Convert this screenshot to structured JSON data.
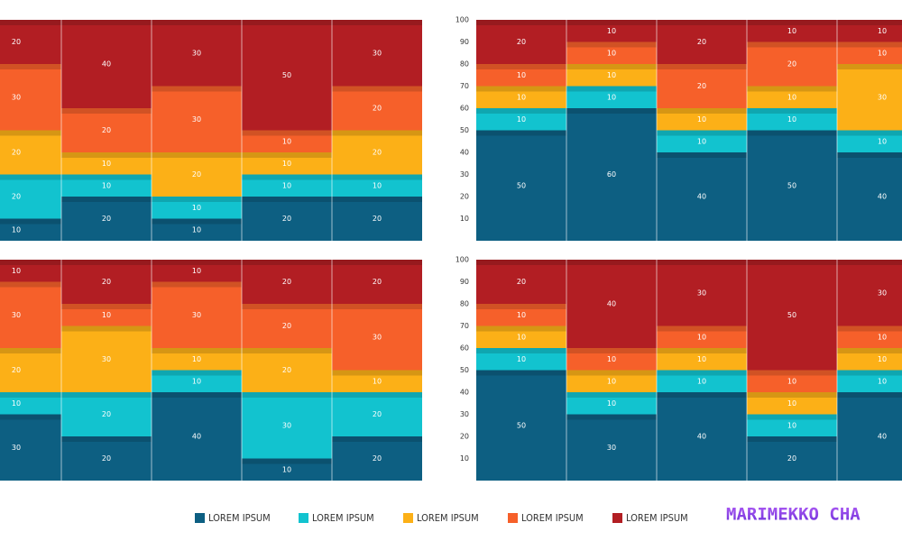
{
  "legend": [
    {
      "label": "LOREM IPSUM",
      "color": "#0d5f82"
    },
    {
      "label": "LOREM IPSUM",
      "color": "#12c3cf"
    },
    {
      "label": "LOREM IPSUM",
      "color": "#fcb017"
    },
    {
      "label": "LOREM IPSUM",
      "color": "#f6602a"
    },
    {
      "label": "LOREM IPSUM",
      "color": "#b21e23"
    }
  ],
  "brand": "MARIMEKKO CHA",
  "chart_data": [
    {
      "type": "bar",
      "stacked": true,
      "ylim": [
        0,
        100
      ],
      "series": [
        {
          "values": [
            10,
            20,
            10,
            20,
            20
          ]
        },
        {
          "values": [
            20,
            10,
            10,
            10,
            10
          ]
        },
        {
          "values": [
            20,
            10,
            20,
            10,
            20
          ]
        },
        {
          "values": [
            30,
            20,
            30,
            10,
            20
          ]
        },
        {
          "values": [
            20,
            40,
            30,
            50,
            30
          ]
        }
      ]
    },
    {
      "type": "bar",
      "stacked": true,
      "ylim": [
        0,
        100
      ],
      "yticks": [
        10,
        20,
        30,
        40,
        50,
        60,
        70,
        80,
        90,
        100
      ],
      "series": [
        {
          "values": [
            50,
            60,
            40,
            50,
            40
          ]
        },
        {
          "values": [
            10,
            10,
            10,
            10,
            10
          ]
        },
        {
          "values": [
            10,
            10,
            10,
            10,
            30
          ]
        },
        {
          "values": [
            10,
            10,
            20,
            20,
            10
          ]
        },
        {
          "values": [
            20,
            10,
            20,
            10,
            10
          ]
        }
      ]
    },
    {
      "type": "bar",
      "stacked": true,
      "ylim": [
        0,
        100
      ],
      "series": [
        {
          "values": [
            30,
            20,
            40,
            10,
            20
          ]
        },
        {
          "values": [
            10,
            20,
            10,
            30,
            20
          ]
        },
        {
          "values": [
            20,
            30,
            10,
            20,
            10
          ]
        },
        {
          "values": [
            30,
            10,
            30,
            20,
            30
          ]
        },
        {
          "values": [
            10,
            20,
            10,
            20,
            20
          ]
        }
      ]
    },
    {
      "type": "bar",
      "stacked": true,
      "ylim": [
        0,
        100
      ],
      "yticks": [
        10,
        20,
        30,
        40,
        50,
        60,
        70,
        80,
        90,
        100
      ],
      "series": [
        {
          "values": [
            50,
            30,
            40,
            20,
            40
          ]
        },
        {
          "values": [
            10,
            10,
            10,
            10,
            10
          ]
        },
        {
          "values": [
            10,
            10,
            10,
            10,
            10
          ]
        },
        {
          "values": [
            10,
            10,
            10,
            10,
            10
          ]
        },
        {
          "values": [
            20,
            40,
            30,
            50,
            30
          ]
        }
      ]
    }
  ]
}
